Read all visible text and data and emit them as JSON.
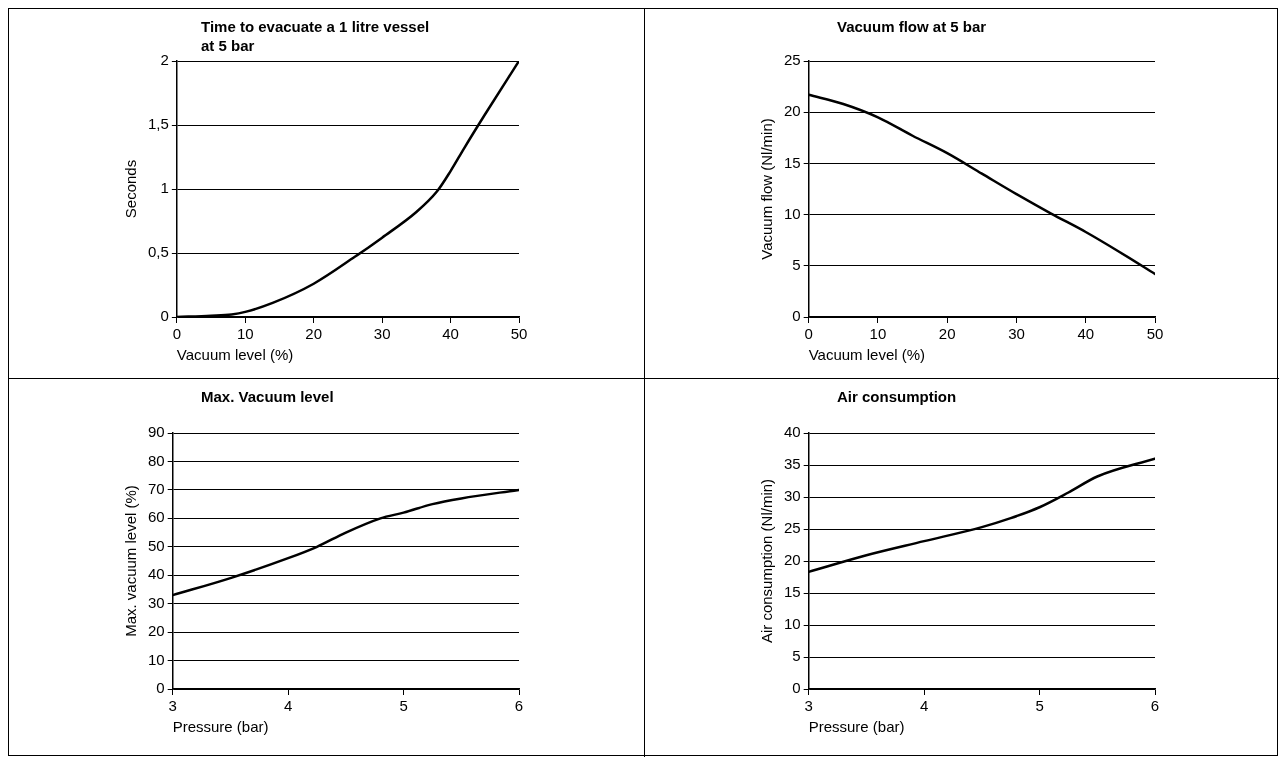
{
  "chart_data": [
    {
      "type": "line",
      "title": "Time to evacuate a 1 litre vessel at 5 bar",
      "xlabel": "Vacuum level (%)",
      "ylabel": "Seconds",
      "x": [
        0,
        5,
        8,
        10,
        14,
        20,
        26,
        30,
        35,
        38,
        40,
        42,
        45,
        50
      ],
      "series": [
        {
          "color": "#000000",
          "values": [
            0,
            0.01,
            0.02,
            0.04,
            0.11,
            0.26,
            0.47,
            0.62,
            0.82,
            0.98,
            1.14,
            1.32,
            1.58,
            2
          ]
        }
      ],
      "xlim": [
        0,
        50
      ],
      "xticks": [
        0,
        10,
        20,
        30,
        40,
        50
      ],
      "ylim": [
        0,
        2
      ],
      "yticks": [
        0,
        {
          "value": 0.5,
          "label": "0,5"
        },
        1,
        {
          "value": 1.5,
          "label": "1,5"
        },
        2
      ],
      "grid": "y",
      "marker": "none"
    },
    {
      "type": "line",
      "title": "Vacuum flow at 5 bar",
      "xlabel": "Vacuum level (%)",
      "ylabel": "Vacuum flow (Nl/min)",
      "x": [
        0,
        5,
        10,
        15,
        20,
        25,
        30,
        35,
        40,
        45,
        50
      ],
      "series": [
        {
          "color": "#000000",
          "values": [
            21.7,
            20.8,
            19.5,
            17.7,
            16,
            14,
            12,
            10.1,
            8.3,
            6.3,
            4.2
          ]
        }
      ],
      "xlim": [
        0,
        50
      ],
      "xticks": [
        0,
        10,
        20,
        30,
        40,
        50
      ],
      "ylim": [
        0,
        25
      ],
      "yticks": [
        0,
        5,
        10,
        15,
        20,
        25
      ],
      "grid": "y",
      "marker": "none"
    },
    {
      "type": "line",
      "title": "Max. Vacuum level",
      "xlabel": "Pressure (bar)",
      "ylabel": "Max. vacuum level (%)",
      "x": [
        3,
        3.5,
        4,
        4.25,
        4.5,
        4.8,
        5,
        5.25,
        5.5,
        6
      ],
      "series": [
        {
          "color": "#000000",
          "values": [
            33,
            39,
            46,
            50,
            55,
            60,
            62,
            65,
            67,
            70
          ]
        }
      ],
      "xlim": [
        3,
        6
      ],
      "xticks": [
        3,
        4,
        5,
        6
      ],
      "ylim": [
        0,
        90
      ],
      "yticks": [
        0,
        10,
        20,
        30,
        40,
        50,
        60,
        70,
        80,
        90
      ],
      "grid": "y",
      "marker": "none"
    },
    {
      "type": "line",
      "title": "Air consumption",
      "xlabel": "Pressure (bar)",
      "ylabel": "Air consumption (Nl/min)",
      "x": [
        3,
        3.5,
        4,
        4.5,
        4.75,
        5,
        5.25,
        5.5,
        6
      ],
      "series": [
        {
          "color": "#000000",
          "values": [
            18.3,
            20.9,
            23.1,
            25.3,
            26.7,
            28.4,
            30.7,
            33.2,
            36
          ]
        }
      ],
      "xlim": [
        3,
        6
      ],
      "xticks": [
        3,
        4,
        5,
        6
      ],
      "ylim": [
        0,
        40
      ],
      "yticks": [
        0,
        5,
        10,
        15,
        20,
        25,
        30,
        35,
        40
      ],
      "grid": "y",
      "marker": "none"
    }
  ]
}
